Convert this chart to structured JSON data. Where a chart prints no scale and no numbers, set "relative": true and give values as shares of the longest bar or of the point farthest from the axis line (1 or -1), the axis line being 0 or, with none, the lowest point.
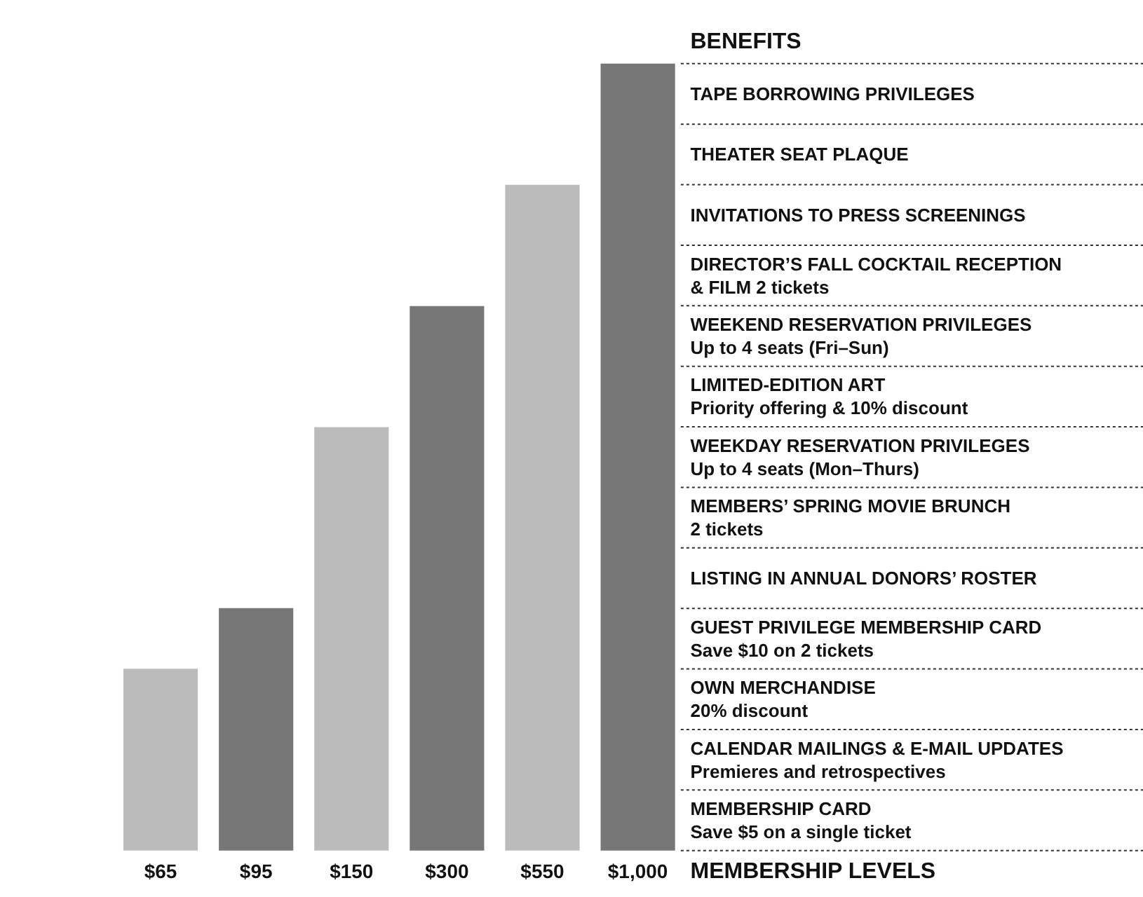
{
  "chart_data": {
    "type": "bar",
    "relative": true,
    "title": "BENEFITS",
    "xlabel": "MEMBERSHIP LEVELS",
    "categories": [
      "$65",
      "$95",
      "$150",
      "$300",
      "$550",
      "$1,000"
    ],
    "values": [
      0.231,
      0.308,
      0.538,
      0.692,
      0.846,
      1
    ],
    "colors": [
      "#bbbbbb",
      "#777777",
      "#bbbbbb",
      "#777777",
      "#bbbbbb",
      "#777777"
    ],
    "annotations": [
      "TAPE BORROWING PRIVILEGES",
      "THEATER SEAT PLAQUE",
      "INVITATIONS TO PRESS SCREENINGS",
      "DIRECTOR’S FALL COCKTAIL RECEPTION\n& FILM  2 tickets",
      "WEEKEND RESERVATION PRIVILEGES\nUp to 4 seats (Fri–Sun)",
      "LIMITED-EDITION ART\nPriority offering & 10% discount",
      "WEEKDAY RESERVATION PRIVILEGES\nUp to 4 seats (Mon–Thurs)",
      "MEMBERS’ SPRING MOVIE BRUNCH\n2 tickets",
      "LISTING IN ANNUAL DONORS’ ROSTER",
      "GUEST PRIVILEGE MEMBERSHIP CARD\nSave $10 on 2 tickets",
      "OWN MERCHANDISE\n20% discount",
      "CALENDAR MAILINGS & E-MAIL UPDATES\nPremieres and retrospectives",
      "MEMBERSHIP CARD\nSave $5 on a single ticket"
    ],
    "grid": false
  }
}
